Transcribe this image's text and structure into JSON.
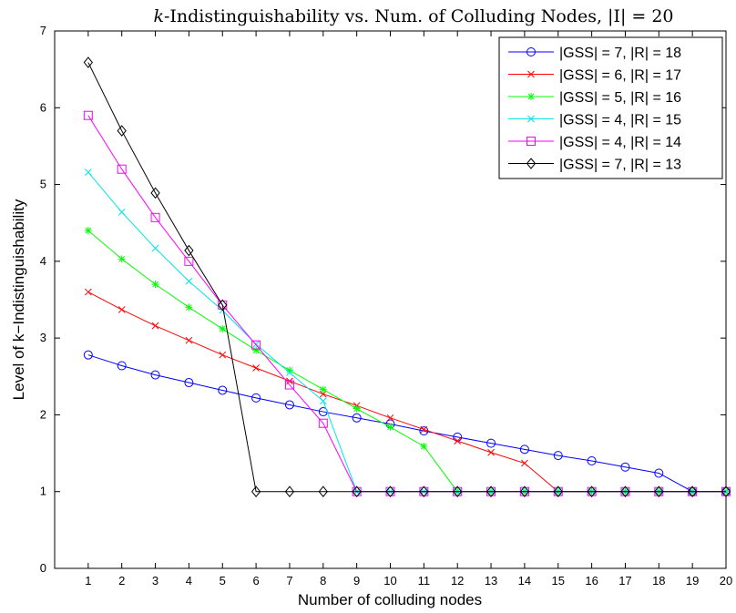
{
  "chart_data": {
    "type": "line",
    "title_prefix": "k",
    "title_rest": "-Indistinguishability vs. Num. of Colluding Nodes, |I| = 20",
    "xlabel": "Number of colluding nodes",
    "ylabel": "Level of k−Indistinguishability",
    "xlim": [
      0,
      20
    ],
    "ylim": [
      0,
      7
    ],
    "x_ticks": [
      1,
      2,
      3,
      4,
      5,
      6,
      7,
      8,
      9,
      10,
      11,
      12,
      13,
      14,
      15,
      16,
      17,
      18,
      19,
      20
    ],
    "y_ticks": [
      0,
      1,
      2,
      3,
      4,
      5,
      6,
      7
    ],
    "grid": false,
    "legend_position": "top-right",
    "series": [
      {
        "name": "|GSS| = 7, |R| = 18",
        "color": "#0000ff",
        "marker": "circle",
        "x": [
          1,
          2,
          3,
          4,
          5,
          6,
          7,
          8,
          9,
          10,
          11,
          12,
          13,
          14,
          15,
          16,
          17,
          18,
          19,
          20
        ],
        "values": [
          2.78,
          2.64,
          2.52,
          2.42,
          2.32,
          2.22,
          2.13,
          2.04,
          1.96,
          1.88,
          1.79,
          1.71,
          1.63,
          1.55,
          1.47,
          1.4,
          1.32,
          1.24,
          1.0,
          1.0
        ]
      },
      {
        "name": "|GSS| = 6, |R| = 17",
        "color": "#ff0000",
        "marker": "x",
        "x": [
          1,
          2,
          3,
          4,
          5,
          6,
          7,
          8,
          9,
          10,
          11,
          12,
          13,
          14,
          15,
          16,
          17,
          18,
          19,
          20
        ],
        "values": [
          3.6,
          3.37,
          3.16,
          2.97,
          2.78,
          2.61,
          2.44,
          2.27,
          2.12,
          1.96,
          1.81,
          1.66,
          1.51,
          1.37,
          1.0,
          1.0,
          1.0,
          1.0,
          1.0,
          1.0
        ]
      },
      {
        "name": "|GSS| = 5, |R| = 16",
        "color": "#00ff00",
        "marker": "asterisk",
        "x": [
          1,
          2,
          3,
          4,
          5,
          6,
          7,
          8,
          9,
          10,
          11,
          12,
          13,
          14,
          15,
          16,
          17,
          18,
          19,
          20
        ],
        "values": [
          4.4,
          4.03,
          3.7,
          3.4,
          3.12,
          2.84,
          2.58,
          2.33,
          2.08,
          1.84,
          1.59,
          1.0,
          1.0,
          1.0,
          1.0,
          1.0,
          1.0,
          1.0,
          1.0,
          1.0
        ]
      },
      {
        "name": "|GSS| = 4, |R| = 15",
        "color": "#00e5e5",
        "marker": "x",
        "x": [
          1,
          2,
          3,
          4,
          5,
          6,
          7,
          8,
          9,
          10,
          11,
          12,
          13,
          14,
          15,
          16,
          17,
          18,
          19,
          20
        ],
        "values": [
          5.16,
          4.64,
          4.17,
          3.74,
          3.36,
          2.92,
          2.55,
          2.18,
          1.0,
          1.0,
          1.0,
          1.0,
          1.0,
          1.0,
          1.0,
          1.0,
          1.0,
          1.0,
          1.0,
          1.0
        ]
      },
      {
        "name": "|GSS| = 4, |R| = 14",
        "color": "#ff00ff",
        "marker": "square",
        "x": [
          1,
          2,
          3,
          4,
          5,
          6,
          7,
          8,
          9,
          10,
          11,
          12,
          13,
          14,
          15,
          16,
          17,
          18,
          19,
          20
        ],
        "values": [
          5.9,
          5.2,
          4.57,
          4.0,
          3.43,
          2.91,
          2.39,
          1.89,
          1.0,
          1.0,
          1.0,
          1.0,
          1.0,
          1.0,
          1.0,
          1.0,
          1.0,
          1.0,
          1.0,
          1.0
        ]
      },
      {
        "name": "|GSS| = 7, |R| = 13",
        "color": "#000000",
        "marker": "diamond",
        "x": [
          1,
          2,
          3,
          4,
          5,
          6,
          7,
          8,
          9,
          10,
          11,
          12,
          13,
          14,
          15,
          16,
          17,
          18,
          19,
          20
        ],
        "values": [
          6.59,
          5.7,
          4.89,
          4.14,
          3.43,
          1.0,
          1.0,
          1.0,
          1.0,
          1.0,
          1.0,
          1.0,
          1.0,
          1.0,
          1.0,
          1.0,
          1.0,
          1.0,
          1.0,
          1.0
        ]
      }
    ]
  }
}
